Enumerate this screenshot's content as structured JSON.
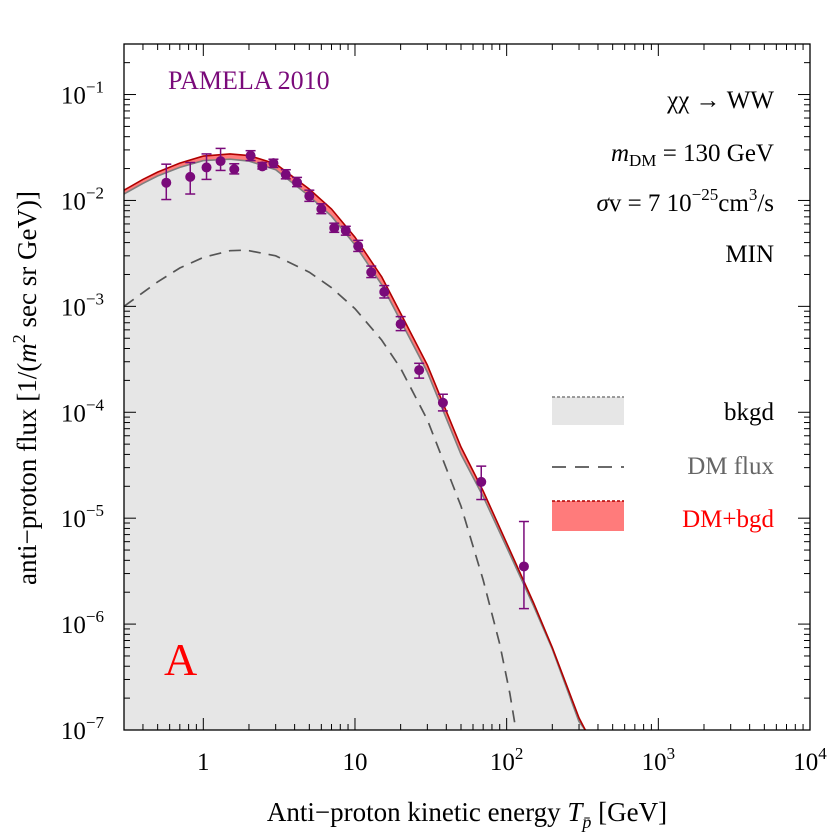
{
  "chart_data": {
    "type": "line",
    "scale": "log-log",
    "xlim": [
      0.3,
      10000
    ],
    "ylim": [
      1e-07,
      0.3
    ],
    "xlabel": "Anti−proton kinetic energy",
    "xlabel_symbol": "T",
    "xlabel_symbol_sub": "p̄",
    "xlabel_unit": "[GeV]",
    "ylabel_prefix": "anti−proton flux [1/(",
    "ylabel_m": "m",
    "ylabel_exp": "2",
    "ylabel_suffix": " sec sr GeV)]",
    "x_ticks": [
      {
        "value": 1,
        "base": "1",
        "exp": ""
      },
      {
        "value": 10,
        "base": "10",
        "exp": ""
      },
      {
        "value": 100,
        "base": "10",
        "exp": "2"
      },
      {
        "value": 1000,
        "base": "10",
        "exp": "3"
      },
      {
        "value": 10000,
        "base": "10",
        "exp": "4"
      }
    ],
    "y_ticks": [
      {
        "value": 0.1,
        "base": "10",
        "exp": "−1"
      },
      {
        "value": 0.01,
        "base": "10",
        "exp": "−2"
      },
      {
        "value": 0.001,
        "base": "10",
        "exp": "−3"
      },
      {
        "value": 0.0001,
        "base": "10",
        "exp": "−4"
      },
      {
        "value": 1e-05,
        "base": "10",
        "exp": "−5"
      },
      {
        "value": 1e-06,
        "base": "10",
        "exp": "−6"
      },
      {
        "value": 1e-07,
        "base": "10",
        "exp": "−7"
      }
    ],
    "series": [
      {
        "name": "bkgd",
        "style": "filled-gray",
        "x": [
          0.3,
          0.4,
          0.5,
          0.7,
          1,
          1.5,
          2,
          3,
          5,
          7,
          10,
          15,
          20,
          30,
          50,
          70,
          100,
          150,
          200,
          300,
          330
        ],
        "y": [
          0.0115,
          0.0145,
          0.017,
          0.0205,
          0.0238,
          0.0245,
          0.0235,
          0.0195,
          0.011,
          0.0071,
          0.0038,
          0.0016,
          0.00073,
          0.00024,
          4e-05,
          1.6e-05,
          5.3e-06,
          1.5e-06,
          5.8e-07,
          1.2e-07,
          1e-07
        ]
      },
      {
        "name": "DM flux",
        "style": "dashed",
        "x": [
          0.3,
          0.5,
          0.7,
          1,
          1.5,
          1.8,
          2,
          3,
          5,
          7,
          10,
          15,
          20,
          30,
          50,
          70,
          90,
          105,
          115
        ],
        "y": [
          0.001,
          0.0017,
          0.0023,
          0.0029,
          0.00335,
          0.00338,
          0.00335,
          0.003,
          0.0021,
          0.0015,
          0.00095,
          0.00048,
          0.00026,
          8.5e-05,
          1.3e-05,
          2.6e-06,
          6.5e-07,
          2.2e-07,
          1e-07
        ]
      },
      {
        "name": "DM+bgd",
        "style": "filled-red",
        "x": [
          0.3,
          0.4,
          0.5,
          0.7,
          1,
          1.5,
          2,
          3,
          5,
          7,
          10,
          15,
          20,
          30,
          50,
          70,
          100,
          150,
          200,
          300,
          330
        ],
        "y": [
          0.0125,
          0.0158,
          0.0185,
          0.0225,
          0.0262,
          0.0275,
          0.0265,
          0.0222,
          0.0128,
          0.0083,
          0.0045,
          0.0019,
          0.00086,
          0.00028,
          4.7e-05,
          1.8e-05,
          5.8e-06,
          1.6e-06,
          6e-07,
          1.3e-07,
          1e-07
        ]
      }
    ],
    "data_points": {
      "name": "PAMELA 2010",
      "x": [
        0.57,
        0.82,
        1.05,
        1.3,
        1.6,
        2.05,
        2.45,
        2.9,
        3.5,
        4.15,
        5.0,
        6.0,
        7.3,
        8.7,
        10.5,
        12.8,
        15.6,
        20.0,
        26.5,
        38.0,
        68.0,
        130.0
      ],
      "y": [
        0.0147,
        0.0167,
        0.0205,
        0.0235,
        0.0197,
        0.0265,
        0.021,
        0.0225,
        0.0175,
        0.0148,
        0.011,
        0.0083,
        0.0055,
        0.0052,
        0.0037,
        0.0021,
        0.00137,
        0.00068,
        0.00025,
        0.000123,
        2.2e-05,
        3.5e-06
      ],
      "ylo": [
        0.0102,
        0.0115,
        0.0158,
        0.0192,
        0.0178,
        0.0238,
        0.0198,
        0.0205,
        0.016,
        0.0135,
        0.0098,
        0.0075,
        0.005,
        0.0047,
        0.0033,
        0.00187,
        0.0012,
        0.00059,
        0.00021,
        0.000103,
        1.5e-05,
        1.4e-06
      ],
      "yhi": [
        0.022,
        0.0228,
        0.0275,
        0.031,
        0.0222,
        0.0295,
        0.0228,
        0.0245,
        0.0195,
        0.0165,
        0.0125,
        0.0093,
        0.0061,
        0.0057,
        0.0042,
        0.0024,
        0.00157,
        0.0008,
        0.00029,
        0.000148,
        3.1e-05,
        9.3e-06
      ],
      "color": "#7a0a7a"
    },
    "annotations": {
      "dataset": "PAMELA 2010",
      "channel": "χχ → WW",
      "mass_symbol": "m",
      "mass_sub": "DM",
      "mass_value": " = 130 GeV",
      "xsec_symbol": "σ",
      "xsec_value_1": "v = 7 10",
      "xsec_exp": "−25",
      "xsec_value_2": "cm",
      "xsec_exp2": "3",
      "xsec_value_3": "/s",
      "propagation": "MIN",
      "panel_label": "A"
    },
    "legend": {
      "position": "right-middle",
      "entries": [
        "bkgd",
        "DM flux",
        "DM+bgd"
      ]
    },
    "colors": {
      "dm_data": "#7a0a7a",
      "bkgd_fill": "#e6e6e6",
      "bkgd_line": "#7f7f7f",
      "dm_line": "#555555",
      "sum_fill": "#ff7b7b",
      "sum_line": "#b00000",
      "legend_dm_text": "#666666",
      "legend_sum_text": "#ff0000",
      "panel_label": "#ff0000"
    }
  }
}
